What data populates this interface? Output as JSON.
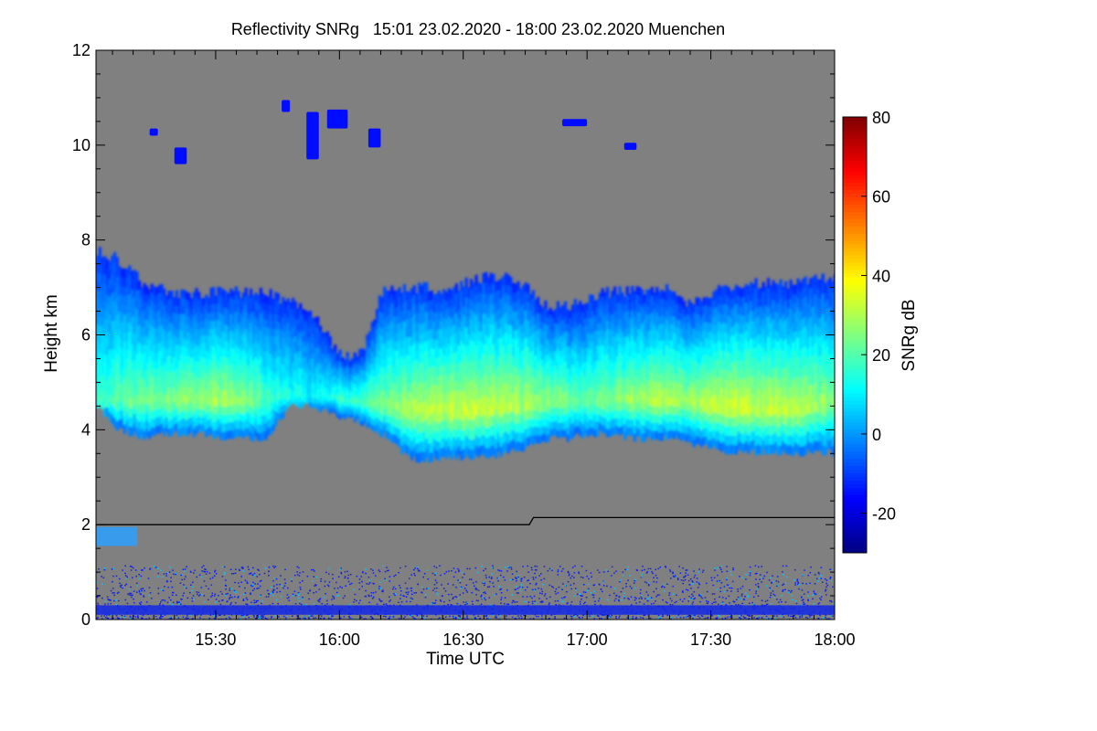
{
  "chart_data": {
    "type": "heatmap",
    "title": "Reflectivity SNRg   15:01 23.02.2020 - 18:00 23.02.2020 Muenchen",
    "xlabel": "Time UTC",
    "ylabel": "Height km",
    "x_range_minutes_utc": [
      901,
      1080
    ],
    "y_range_km": [
      0,
      12
    ],
    "x_ticks": [
      {
        "label": "15:30",
        "minutes": 930
      },
      {
        "label": "16:00",
        "minutes": 960
      },
      {
        "label": "16:30",
        "minutes": 990
      },
      {
        "label": "17:00",
        "minutes": 1020
      },
      {
        "label": "17:30",
        "minutes": 1050
      },
      {
        "label": "18:00",
        "minutes": 1080
      }
    ],
    "y_ticks": [
      {
        "label": "0",
        "km": 0
      },
      {
        "label": "2",
        "km": 2
      },
      {
        "label": "4",
        "km": 4
      },
      {
        "label": "6",
        "km": 6
      },
      {
        "label": "8",
        "km": 8
      },
      {
        "label": "10",
        "km": 10
      },
      {
        "label": "12",
        "km": 12
      }
    ],
    "colorbar": {
      "label": "SNRg dB",
      "range_db": [
        -30,
        80
      ],
      "ticks": [
        {
          "label": "80",
          "value": 80
        },
        {
          "label": "60",
          "value": 60
        },
        {
          "label": "40",
          "value": 40
        },
        {
          "label": "20",
          "value": 20
        },
        {
          "label": "0",
          "value": 0
        },
        {
          "label": "-20",
          "value": -20
        }
      ]
    },
    "background_color": "#808080",
    "main_cloud": {
      "note": "stratiform precipitating cloud layer; top and base heights in km, estimated",
      "time_minutes": [
        901,
        906,
        912,
        918,
        925,
        930,
        936,
        942,
        948,
        953,
        958,
        962,
        966,
        970,
        975,
        980,
        985,
        990,
        995,
        1000,
        1005,
        1010,
        1015,
        1020,
        1025,
        1030,
        1035,
        1040,
        1045,
        1050,
        1055,
        1060,
        1065,
        1070,
        1075,
        1080
      ],
      "top_km": [
        7.8,
        7.6,
        7.1,
        6.9,
        6.9,
        6.9,
        6.9,
        6.9,
        6.7,
        6.5,
        5.8,
        5.5,
        5.8,
        6.9,
        7.0,
        7.0,
        6.9,
        7.1,
        7.2,
        7.2,
        7.0,
        6.6,
        6.6,
        6.8,
        6.9,
        6.9,
        7.0,
        7.0,
        6.6,
        6.9,
        7.0,
        7.1,
        7.1,
        7.1,
        7.2,
        7.2
      ],
      "base_km": [
        4.6,
        4.1,
        3.9,
        4.0,
        4.0,
        3.9,
        3.9,
        3.9,
        4.6,
        4.6,
        4.4,
        4.3,
        4.2,
        4.0,
        3.6,
        3.4,
        3.5,
        3.5,
        3.5,
        3.6,
        3.7,
        3.9,
        3.9,
        4.0,
        4.0,
        3.9,
        3.9,
        3.9,
        3.8,
        3.7,
        3.6,
        3.6,
        3.6,
        3.6,
        3.6,
        3.6
      ],
      "peak_height_km": [
        4.6,
        4.6,
        4.6,
        4.6,
        4.6,
        4.6,
        4.6,
        4.6,
        4.7,
        4.7,
        4.7,
        4.6,
        4.6,
        4.5,
        4.4,
        4.4,
        4.4,
        4.4,
        4.4,
        4.5,
        4.5,
        4.6,
        4.6,
        4.6,
        4.6,
        4.6,
        4.6,
        4.6,
        4.6,
        4.5,
        4.5,
        4.4,
        4.4,
        4.4,
        4.5,
        4.6
      ],
      "peak_snr_db": [
        18,
        22,
        24,
        26,
        28,
        30,
        27,
        20,
        14,
        12,
        16,
        18,
        22,
        26,
        30,
        32,
        34,
        34,
        33,
        32,
        30,
        28,
        24,
        22,
        26,
        28,
        30,
        31,
        30,
        32,
        34,
        34,
        33,
        32,
        30,
        26
      ]
    },
    "upper_cloud_patches": [
      {
        "t0": 946,
        "t1": 948,
        "h_lo": 10.7,
        "h_hi": 10.95
      },
      {
        "t0": 952,
        "t1": 955,
        "h_lo": 9.7,
        "h_hi": 10.7
      },
      {
        "t0": 957,
        "t1": 962,
        "h_lo": 10.35,
        "h_hi": 10.75
      },
      {
        "t0": 967,
        "t1": 970,
        "h_lo": 9.95,
        "h_hi": 10.35
      },
      {
        "t0": 914,
        "t1": 916,
        "h_lo": 10.2,
        "h_hi": 10.35
      },
      {
        "t0": 920,
        "t1": 923,
        "h_lo": 9.6,
        "h_hi": 9.95
      },
      {
        "t0": 1014,
        "t1": 1020,
        "h_lo": 10.4,
        "h_hi": 10.55
      },
      {
        "t0": 1029,
        "t1": 1032,
        "h_lo": 9.9,
        "h_hi": 10.05
      }
    ],
    "boundary_line": [
      {
        "minutes": 901,
        "km": 2.0
      },
      {
        "minutes": 1006,
        "km": 2.0
      },
      {
        "minutes": 1007,
        "km": 2.15
      },
      {
        "minutes": 1080,
        "km": 2.15
      }
    ]
  }
}
